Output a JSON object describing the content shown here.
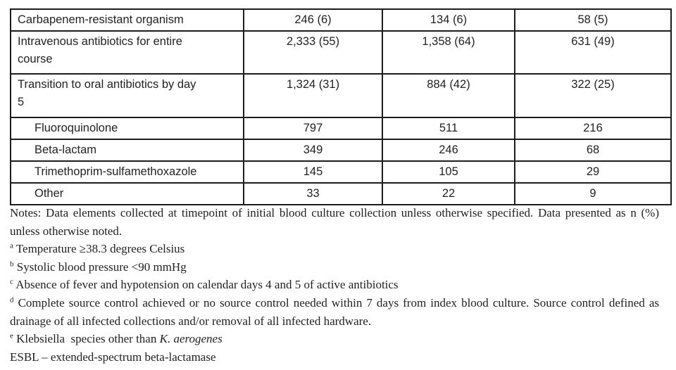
{
  "table": {
    "rows": [
      {
        "label": "Carbapenem-resistant organism",
        "indent": false,
        "values": [
          "246 (6)",
          "134 (6)",
          "58 (5)"
        ]
      },
      {
        "label": "Intravenous antibiotics for entire\ncourse",
        "indent": false,
        "values": [
          "2,333 (55)",
          "1,358 (64)",
          "631 (49)"
        ]
      },
      {
        "label": "Transition to oral antibiotics by day\n5",
        "indent": false,
        "values": [
          "1,324 (31)",
          "884 (42)",
          "322 (25)"
        ]
      },
      {
        "label": "Fluoroquinolone",
        "indent": true,
        "values": [
          "797",
          "511",
          "216"
        ]
      },
      {
        "label": "Beta-lactam",
        "indent": true,
        "values": [
          "349",
          "246",
          "68"
        ]
      },
      {
        "label": "Trimethoprim-sulfamethoxazole",
        "indent": true,
        "values": [
          "145",
          "105",
          "29"
        ]
      },
      {
        "label": "Other",
        "indent": true,
        "values": [
          "33",
          "22",
          "9"
        ]
      }
    ]
  },
  "notes": {
    "intro": "Notes: Data elements collected at timepoint of initial blood culture collection unless otherwise specified. Data presented as n (%) unless otherwise noted.",
    "footnotes": [
      {
        "marker": "a",
        "text": "Temperature ≥38.3 degrees Celsius"
      },
      {
        "marker": "b",
        "text": "Systolic blood pressure <90 mmHg"
      },
      {
        "marker": "c",
        "text": "Absence of fever and hypotension on calendar days 4 and 5 of active antibiotics"
      },
      {
        "marker": "d",
        "text": "Complete source control achieved or no source control needed within 7 days from index blood culture. Source control defined as drainage of all infected collections and/or removal of all infected hardware."
      },
      {
        "marker": "e",
        "text_prefix": "Klebsiella  species other than ",
        "text_italic": "K. aerogenes"
      }
    ],
    "abbreviation": "ESBL – extended-spectrum beta-lactamase"
  },
  "colors": {
    "text": "#212121",
    "border": "#1c1c1c",
    "background": "#ffffff"
  }
}
